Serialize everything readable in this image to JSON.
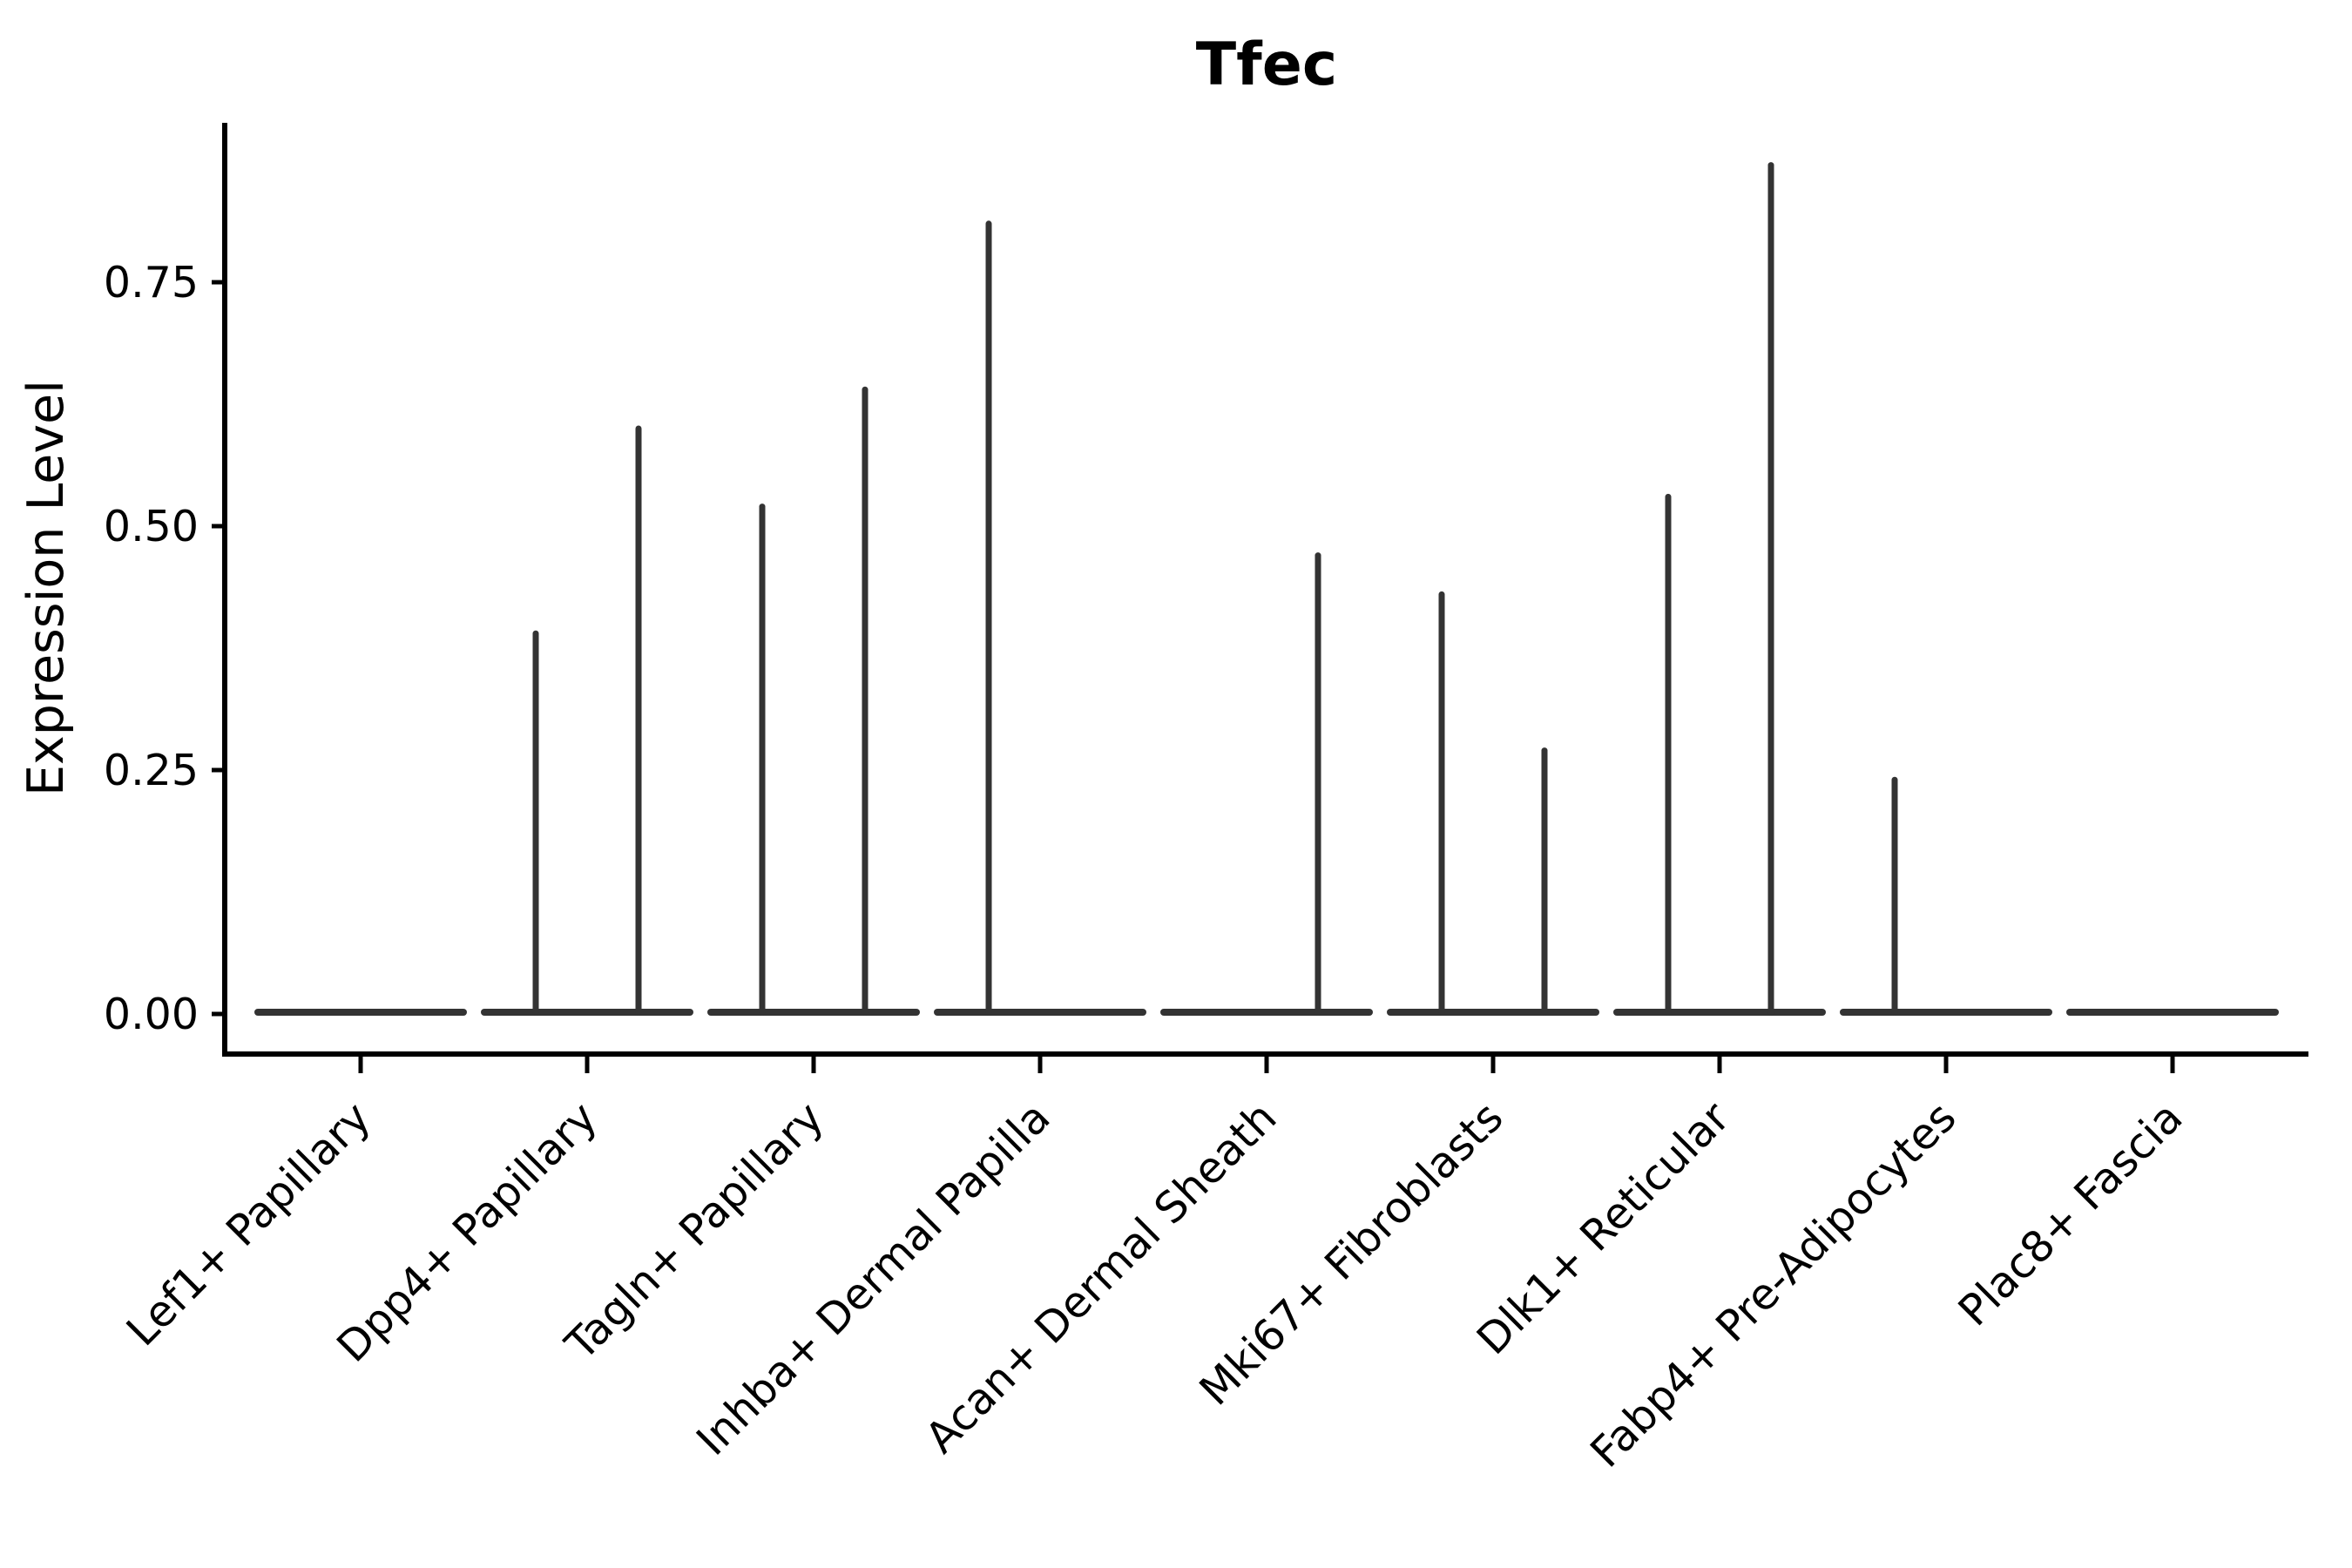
{
  "chart_data": {
    "type": "violin",
    "title": "Tfec",
    "xlabel": "",
    "ylabel": "Expression Level",
    "ytick_labels": [
      "0.00",
      "0.25",
      "0.50",
      "0.75"
    ],
    "ytick_values": [
      0.0,
      0.25,
      0.5,
      0.75
    ],
    "ylim": [
      -0.044,
      0.913
    ],
    "grid": false,
    "legend_position": "none",
    "violins_per_category": 2,
    "baseline_value": 0.0,
    "categories": [
      "Lef1+ Papillary",
      "Dpp4+ Papillary",
      "Tagln+ Papillary",
      "Inhba+ Dermal Papilla",
      "Acan+ Dermal Sheath",
      "Mki67+ Fibroblasts",
      "Dlk1+ Reticular",
      "Fabp4+ Pre-Adipocytes",
      "Plac8+ Fascia"
    ],
    "series": [
      {
        "category": "Lef1+ Papillary",
        "violin_max": [
          0.0,
          0.0
        ]
      },
      {
        "category": "Dpp4+ Papillary",
        "violin_max": [
          0.39,
          0.6
        ]
      },
      {
        "category": "Tagln+ Papillary",
        "violin_max": [
          0.52,
          0.64
        ]
      },
      {
        "category": "Inhba+ Dermal Papilla",
        "violin_max": [
          0.81,
          0.0
        ]
      },
      {
        "category": "Acan+ Dermal Sheath",
        "violin_max": [
          0.0,
          0.47
        ]
      },
      {
        "category": "Mki67+ Fibroblasts",
        "violin_max": [
          0.43,
          0.27
        ]
      },
      {
        "category": "Dlk1+ Reticular",
        "violin_max": [
          0.53,
          0.87
        ]
      },
      {
        "category": "Fabp4+ Pre-Adipocytes",
        "violin_max": [
          0.24,
          0.0
        ]
      },
      {
        "category": "Plac8+ Fascia",
        "violin_max": [
          0.0,
          0.0
        ]
      }
    ],
    "colors": {
      "violin_stroke": "#333333",
      "axis": "#000000",
      "text": "#000000",
      "background": "#ffffff"
    }
  }
}
